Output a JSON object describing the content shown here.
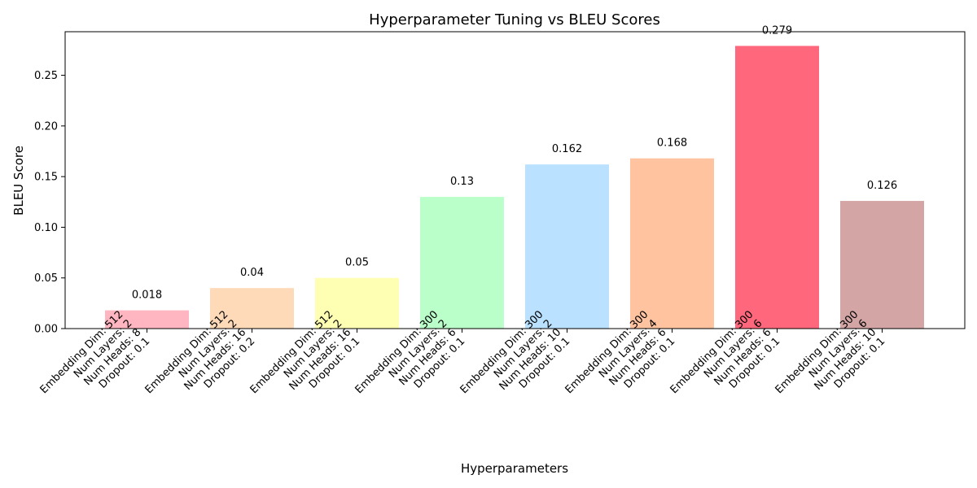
{
  "chart_data": {
    "type": "bar",
    "title": "Hyperparameter Tuning vs BLEU Scores",
    "xlabel": "Hyperparameters",
    "ylabel": "BLEU Score",
    "ylim": [
      0,
      0.293
    ],
    "yticks": [
      "0.00",
      "0.05",
      "0.10",
      "0.15",
      "0.20",
      "0.25"
    ],
    "grid": false,
    "categories": [
      [
        "Embedding Dim: 512",
        "Num Layers: 2",
        "Num Heads: 8",
        "Dropout: 0.1"
      ],
      [
        "Embedding Dim: 512",
        "Num Layers: 2",
        "Num Heads: 16",
        "Dropout: 0.2"
      ],
      [
        "Embedding Dim: 512",
        "Num Layers: 2",
        "Num Heads: 16",
        "Dropout: 0.1"
      ],
      [
        "Embedding Dim: 300",
        "Num Layers: 2",
        "Num Heads: 6",
        "Dropout: 0.1"
      ],
      [
        "Embedding Dim: 300",
        "Num Layers: 2",
        "Num Heads: 10",
        "Dropout: 0.1"
      ],
      [
        "Embedding Dim: 300",
        "Num Layers: 4",
        "Num Heads: 6",
        "Dropout: 0.1"
      ],
      [
        "Embedding Dim: 300",
        "Num Layers: 6",
        "Num Heads: 6",
        "Dropout: 0.1"
      ],
      [
        "Embedding Dim: 300",
        "Num Layers: 6",
        "Num Heads: 10",
        "Dropout: 0.1"
      ]
    ],
    "values": [
      0.018,
      0.04,
      0.05,
      0.13,
      0.162,
      0.168,
      0.279,
      0.126
    ],
    "value_labels": [
      "0.018",
      "0.04",
      "0.05",
      "0.13",
      "0.162",
      "0.168",
      "0.279",
      "0.126"
    ],
    "colors": [
      "#ffb6c1",
      "#ffdab9",
      "#ffffb3",
      "#baffc9",
      "#bae1ff",
      "#ffc3a0",
      "#ff677d",
      "#d4a5a5"
    ]
  }
}
